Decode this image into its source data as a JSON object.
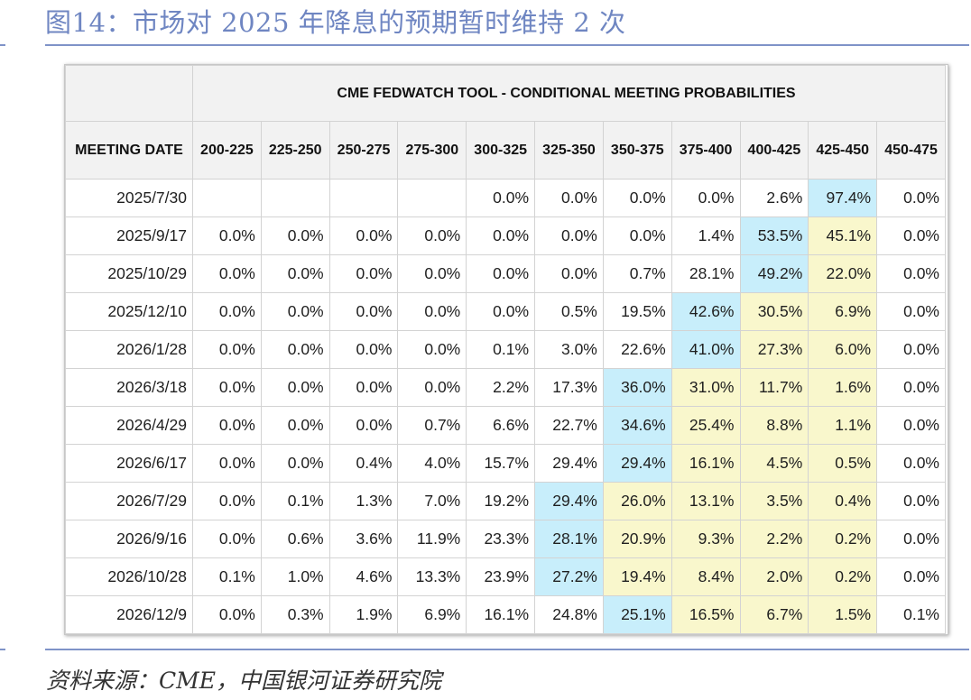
{
  "figure": {
    "title": "图14：市场对 2025 年降息的预期暂时维持 2 次",
    "source": "资料来源：CME，中国银河证券研究院"
  },
  "table": {
    "tool_title": "CME FEDWATCH TOOL - CONDITIONAL MEETING PROBABILITIES",
    "date_header": "MEETING DATE",
    "columns": [
      "200-225",
      "225-250",
      "250-275",
      "275-300",
      "300-325",
      "325-350",
      "350-375",
      "375-400",
      "400-425",
      "425-450",
      "450-475"
    ],
    "highlight_colors": {
      "blue": "#c8eefb",
      "yellow": "#f9f7cc"
    },
    "rows": [
      {
        "date": "2025/7/30",
        "values": [
          "",
          "",
          "",
          "",
          "0.0%",
          "0.0%",
          "0.0%",
          "0.0%",
          "2.6%",
          "97.4%",
          "0.0%"
        ],
        "blue": 9,
        "yellow": null
      },
      {
        "date": "2025/9/17",
        "values": [
          "0.0%",
          "0.0%",
          "0.0%",
          "0.0%",
          "0.0%",
          "0.0%",
          "0.0%",
          "1.4%",
          "53.5%",
          "45.1%",
          "0.0%"
        ],
        "blue": 8,
        "yellow": 9
      },
      {
        "date": "2025/10/29",
        "values": [
          "0.0%",
          "0.0%",
          "0.0%",
          "0.0%",
          "0.0%",
          "0.0%",
          "0.7%",
          "28.1%",
          "49.2%",
          "22.0%",
          "0.0%"
        ],
        "blue": 8,
        "yellow": 9
      },
      {
        "date": "2025/12/10",
        "values": [
          "0.0%",
          "0.0%",
          "0.0%",
          "0.0%",
          "0.0%",
          "0.5%",
          "19.5%",
          "42.6%",
          "30.5%",
          "6.9%",
          "0.0%"
        ],
        "blue": 7,
        "yellow": [
          8,
          9
        ]
      },
      {
        "date": "2026/1/28",
        "values": [
          "0.0%",
          "0.0%",
          "0.0%",
          "0.0%",
          "0.1%",
          "3.0%",
          "22.6%",
          "41.0%",
          "27.3%",
          "6.0%",
          "0.0%"
        ],
        "blue": 7,
        "yellow": [
          8,
          9
        ]
      },
      {
        "date": "2026/3/18",
        "values": [
          "0.0%",
          "0.0%",
          "0.0%",
          "0.0%",
          "2.2%",
          "17.3%",
          "36.0%",
          "31.0%",
          "11.7%",
          "1.6%",
          "0.0%"
        ],
        "blue": 6,
        "yellow": [
          7,
          8,
          9
        ]
      },
      {
        "date": "2026/4/29",
        "values": [
          "0.0%",
          "0.0%",
          "0.0%",
          "0.7%",
          "6.6%",
          "22.7%",
          "34.6%",
          "25.4%",
          "8.8%",
          "1.1%",
          "0.0%"
        ],
        "blue": 6,
        "yellow": [
          7,
          8,
          9
        ]
      },
      {
        "date": "2026/6/17",
        "values": [
          "0.0%",
          "0.0%",
          "0.4%",
          "4.0%",
          "15.7%",
          "29.4%",
          "29.4%",
          "16.1%",
          "4.5%",
          "0.5%",
          "0.0%"
        ],
        "blue": 6,
        "yellow": [
          7,
          8,
          9
        ]
      },
      {
        "date": "2026/7/29",
        "values": [
          "0.0%",
          "0.1%",
          "1.3%",
          "7.0%",
          "19.2%",
          "29.4%",
          "26.0%",
          "13.1%",
          "3.5%",
          "0.4%",
          "0.0%"
        ],
        "blue": 5,
        "yellow": [
          6,
          7,
          8,
          9
        ]
      },
      {
        "date": "2026/9/16",
        "values": [
          "0.0%",
          "0.6%",
          "3.6%",
          "11.9%",
          "23.3%",
          "28.1%",
          "20.9%",
          "9.3%",
          "2.2%",
          "0.2%",
          "0.0%"
        ],
        "blue": 5,
        "yellow": [
          6,
          7,
          8,
          9
        ]
      },
      {
        "date": "2026/10/28",
        "values": [
          "0.1%",
          "1.0%",
          "4.6%",
          "13.3%",
          "23.9%",
          "27.2%",
          "19.4%",
          "8.4%",
          "2.0%",
          "0.2%",
          "0.0%"
        ],
        "blue": 5,
        "yellow": [
          6,
          7,
          8,
          9
        ]
      },
      {
        "date": "2026/12/9",
        "values": [
          "0.0%",
          "0.3%",
          "1.9%",
          "6.9%",
          "16.1%",
          "24.8%",
          "25.1%",
          "16.5%",
          "6.7%",
          "1.5%",
          "0.1%"
        ],
        "blue": 6,
        "yellow": [
          7,
          8,
          9
        ]
      }
    ]
  }
}
